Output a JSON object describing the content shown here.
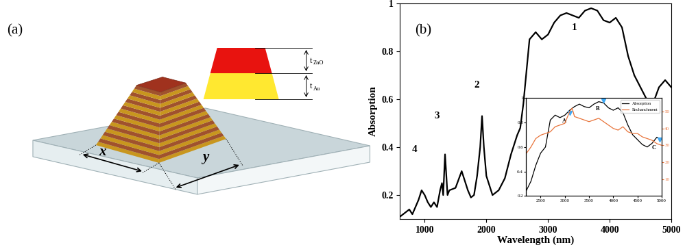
{
  "diagram": {
    "label": "(a)",
    "dimensions": {
      "x": "x",
      "y": "y"
    },
    "layers": [
      {
        "symbol": "t",
        "sub": "ZnO",
        "color": "#e8130f"
      },
      {
        "symbol": "t",
        "sub": "Au",
        "color": "#ffe830"
      }
    ]
  },
  "chart_data": [
    {
      "type": "line",
      "label": "(b)",
      "x_label": "Wavelength (nm)",
      "y_label": "Absorption",
      "xlim": [
        600,
        5000
      ],
      "ylim": [
        0.1,
        1
      ],
      "xticks": [
        1000,
        2000,
        3000,
        4000,
        5000
      ],
      "yticks": [
        0.2,
        0.4,
        0.6,
        0.8,
        1
      ],
      "annotations": [
        {
          "text": "1",
          "x": 3430,
          "y": 0.9
        },
        {
          "text": "2",
          "x": 1840,
          "y": 0.66
        },
        {
          "text": "3",
          "x": 1200,
          "y": 0.53
        },
        {
          "text": "4",
          "x": 830,
          "y": 0.39
        }
      ],
      "series": [
        {
          "name": "Absorption",
          "color": "#000000",
          "x": [
            600,
            700,
            750,
            800,
            900,
            950,
            1000,
            1050,
            1100,
            1150,
            1200,
            1250,
            1280,
            1300,
            1330,
            1370,
            1400,
            1500,
            1600,
            1700,
            1750,
            1800,
            1850,
            1900,
            1930,
            1960,
            2000,
            2100,
            2200,
            2300,
            2400,
            2500,
            2550,
            2600,
            2700,
            2800,
            2900,
            3000,
            3100,
            3200,
            3300,
            3400,
            3500,
            3600,
            3700,
            3800,
            3900,
            4000,
            4100,
            4200,
            4300,
            4400,
            4500,
            4600,
            4700,
            4800,
            4900,
            5000
          ],
          "values": [
            0.11,
            0.13,
            0.14,
            0.12,
            0.18,
            0.22,
            0.2,
            0.17,
            0.15,
            0.17,
            0.15,
            0.22,
            0.25,
            0.2,
            0.37,
            0.2,
            0.22,
            0.23,
            0.3,
            0.22,
            0.19,
            0.2,
            0.28,
            0.4,
            0.53,
            0.4,
            0.28,
            0.2,
            0.22,
            0.27,
            0.37,
            0.45,
            0.48,
            0.58,
            0.85,
            0.88,
            0.85,
            0.87,
            0.92,
            0.95,
            0.96,
            0.95,
            0.94,
            0.97,
            0.98,
            0.97,
            0.93,
            0.92,
            0.94,
            0.9,
            0.78,
            0.7,
            0.65,
            0.6,
            0.58,
            0.65,
            0.68,
            0.65
          ]
        }
      ]
    },
    {
      "type": "line",
      "legend": "upper right",
      "xlim": [
        2200,
        5000
      ],
      "ylim": [
        0.2,
        1
      ],
      "y2lim": [
        0,
        58
      ],
      "xticks": [
        2500,
        3000,
        3500,
        4000,
        4500,
        5000
      ],
      "yticks": [
        0.2,
        0.4,
        0.6,
        0.8,
        1
      ],
      "y2ticks": [
        10,
        20,
        30,
        40,
        50
      ],
      "points": [
        {
          "text": "A",
          "x": 3100,
          "y": 0.88
        },
        {
          "text": "B",
          "x": 3800,
          "y": 0.98
        },
        {
          "text": "C",
          "x": 4950,
          "y": 0.66
        }
      ],
      "point_color": "#3fa9f5",
      "marker": "v",
      "series": [
        {
          "name": "Absorption",
          "color": "#000000",
          "x": [
            2200,
            2300,
            2400,
            2500,
            2600,
            2700,
            2800,
            2900,
            3000,
            3100,
            3200,
            3300,
            3400,
            3500,
            3600,
            3700,
            3800,
            3900,
            4000,
            4100,
            4200,
            4300,
            4400,
            4500,
            4600,
            4700,
            4800,
            4900,
            5000
          ],
          "values": [
            0.24,
            0.32,
            0.45,
            0.55,
            0.6,
            0.82,
            0.86,
            0.84,
            0.86,
            0.9,
            0.93,
            0.95,
            0.93,
            0.92,
            0.95,
            0.97,
            0.96,
            0.92,
            0.9,
            0.92,
            0.88,
            0.78,
            0.7,
            0.66,
            0.62,
            0.6,
            0.63,
            0.68,
            0.66
          ]
        },
        {
          "name": "Enchanchment",
          "color": "#e8743b",
          "axis": "y2",
          "x": [
            2200,
            2300,
            2400,
            2500,
            2600,
            2700,
            2800,
            2900,
            3000,
            3100,
            3150,
            3200,
            3300,
            3400,
            3500,
            3600,
            3700,
            3800,
            3900,
            4000,
            4100,
            4200,
            4300,
            4400,
            4500,
            4600,
            4700,
            4800,
            4900,
            5000
          ],
          "values": [
            25,
            29,
            34,
            36,
            37,
            38,
            41,
            42,
            43,
            50,
            52,
            47,
            46,
            45,
            44,
            45,
            46,
            44,
            42,
            40,
            39,
            41,
            38,
            37,
            37,
            35,
            34,
            33,
            31,
            30
          ]
        }
      ]
    }
  ]
}
